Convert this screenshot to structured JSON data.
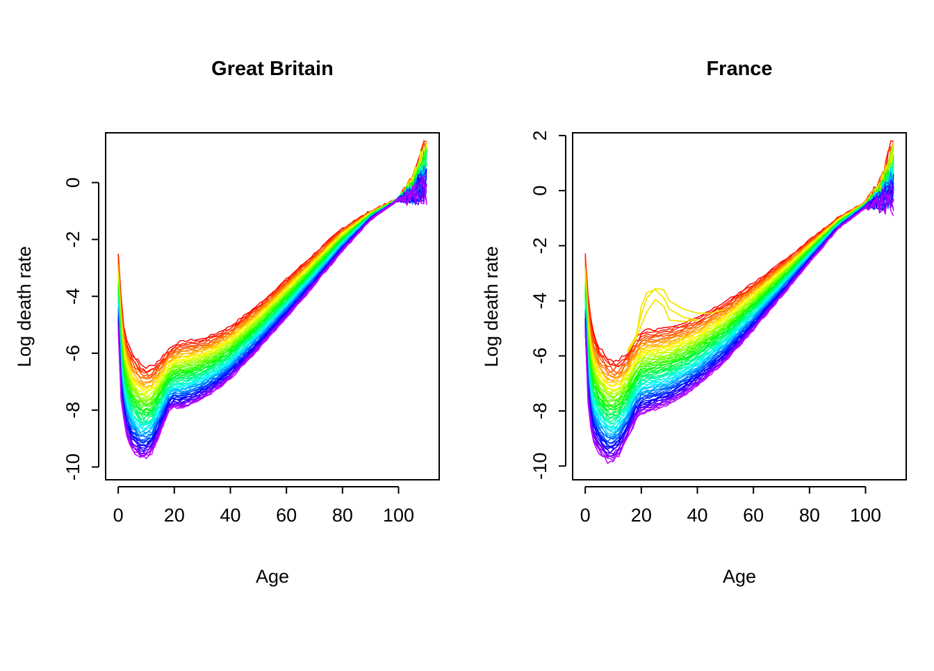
{
  "chart_data": [
    {
      "type": "line",
      "title": "Great Britain",
      "xlabel": "Age",
      "ylabel": "Log death rate",
      "xlim": [
        -4.5,
        114.5
      ],
      "ylim": [
        -10.45,
        1.75
      ],
      "xticks": [
        0,
        20,
        40,
        60,
        80,
        100
      ],
      "yticks": [
        -10,
        -8,
        -6,
        -4,
        -2,
        0
      ],
      "grid": false,
      "legend": "none",
      "series_count": 60,
      "color_gradient": "rainbow: red (earliest years) to violet (latest years)",
      "series_first": {
        "x": [
          0,
          1,
          2,
          3,
          5,
          8,
          10,
          12,
          15,
          18,
          20,
          22,
          25,
          30,
          35,
          40,
          50,
          60,
          70,
          80,
          90,
          100,
          105,
          108,
          110
        ],
        "y": [
          -2.5,
          -4.0,
          -5.0,
          -5.5,
          -6.0,
          -6.4,
          -6.5,
          -6.45,
          -6.2,
          -5.85,
          -5.7,
          -5.6,
          -5.55,
          -5.5,
          -5.3,
          -5.05,
          -4.3,
          -3.4,
          -2.5,
          -1.6,
          -1.0,
          -0.55,
          0.0,
          0.9,
          1.45
        ]
      },
      "series_last": {
        "x": [
          0,
          1,
          2,
          3,
          5,
          8,
          10,
          12,
          15,
          18,
          20,
          22,
          25,
          30,
          35,
          40,
          50,
          60,
          70,
          80,
          90,
          100,
          105,
          108,
          110
        ],
        "y": [
          -5.2,
          -7.6,
          -8.4,
          -8.9,
          -9.4,
          -9.7,
          -9.65,
          -9.5,
          -8.8,
          -8.1,
          -7.9,
          -7.95,
          -7.85,
          -7.6,
          -7.3,
          -6.9,
          -5.85,
          -4.75,
          -3.6,
          -2.4,
          -1.3,
          -0.6,
          -0.5,
          -0.35,
          -0.3
        ]
      }
    },
    {
      "type": "line",
      "title": "France",
      "xlabel": "Age",
      "ylabel": "Log death rate",
      "xlim": [
        -4.5,
        114.5
      ],
      "ylim": [
        -10.5,
        2.1
      ],
      "xticks": [
        0,
        20,
        40,
        60,
        80,
        100
      ],
      "yticks": [
        -10,
        -8,
        -6,
        -4,
        -2,
        0,
        2
      ],
      "grid": false,
      "legend": "none",
      "series_count": 60,
      "color_gradient": "rainbow: red (earliest years) to violet (latest years)",
      "series_first": {
        "x": [
          0,
          1,
          2,
          3,
          5,
          8,
          10,
          12,
          15,
          18,
          20,
          22,
          25,
          30,
          35,
          40,
          50,
          60,
          70,
          80,
          90,
          100,
          105,
          108,
          110
        ],
        "y": [
          -2.3,
          -3.8,
          -4.7,
          -5.2,
          -5.7,
          -6.1,
          -6.2,
          -6.15,
          -5.9,
          -5.4,
          -5.15,
          -5.05,
          -5.05,
          -4.95,
          -4.8,
          -4.6,
          -4.05,
          -3.35,
          -2.6,
          -1.8,
          -1.0,
          -0.4,
          0.1,
          1.0,
          1.75
        ]
      },
      "series_last": {
        "x": [
          0,
          1,
          2,
          3,
          5,
          8,
          10,
          12,
          15,
          18,
          20,
          22,
          25,
          30,
          35,
          40,
          50,
          60,
          70,
          80,
          90,
          100,
          105,
          108,
          110
        ],
        "y": [
          -5.1,
          -7.7,
          -8.6,
          -9.1,
          -9.5,
          -9.85,
          -9.8,
          -9.6,
          -9.0,
          -8.35,
          -8.1,
          -8.05,
          -7.95,
          -7.75,
          -7.45,
          -7.1,
          -6.2,
          -5.05,
          -3.85,
          -2.6,
          -1.4,
          -0.6,
          -0.45,
          -0.35,
          -0.3
        ]
      },
      "hump_anomalies": [
        {
          "x": [
            15,
            18,
            20,
            22,
            25,
            28,
            30,
            35,
            40
          ],
          "y": [
            -5.9,
            -5.4,
            -4.2,
            -3.7,
            -3.6,
            -3.9,
            -4.3,
            -4.6,
            -4.7
          ]
        },
        {
          "x": [
            15,
            18,
            20,
            22,
            25,
            28,
            30,
            35,
            40,
            45,
            50
          ],
          "y": [
            -5.8,
            -5.3,
            -4.5,
            -3.9,
            -3.55,
            -3.6,
            -4.0,
            -4.3,
            -4.45,
            -4.45,
            -4.3
          ]
        },
        {
          "x": [
            15,
            18,
            20,
            22,
            25,
            28,
            30,
            35,
            40
          ],
          "y": [
            -5.85,
            -5.4,
            -4.9,
            -4.4,
            -3.95,
            -4.2,
            -4.7,
            -4.75,
            -4.7
          ]
        }
      ]
    }
  ]
}
